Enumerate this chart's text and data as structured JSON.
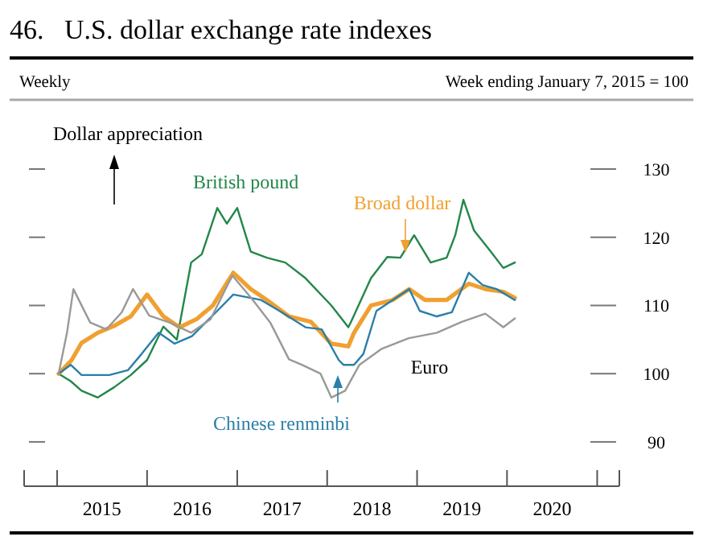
{
  "chart_data": {
    "type": "line",
    "title": "46.   U.S. dollar exchange rate indexes",
    "subtitle": "Weekly",
    "ylabel": "Week ending January 7, 2015 = 100",
    "annotations": [
      "Dollar appreciation"
    ],
    "xlim": [
      "2014-08-20",
      "2021-04-01"
    ],
    "xticks": [
      {
        "value": "2015-01-01",
        "label": null
      },
      {
        "value": "2015-07-02",
        "label": "2015"
      },
      {
        "value": "2016-01-01",
        "label": null
      },
      {
        "value": "2016-07-02",
        "label": "2016"
      },
      {
        "value": "2017-01-01",
        "label": null
      },
      {
        "value": "2017-07-02",
        "label": "2017"
      },
      {
        "value": "2018-01-01",
        "label": null
      },
      {
        "value": "2018-07-02",
        "label": "2018"
      },
      {
        "value": "2019-01-01",
        "label": null
      },
      {
        "value": "2019-07-02",
        "label": "2019"
      },
      {
        "value": "2020-01-01",
        "label": null
      },
      {
        "value": "2020-07-02",
        "label": "2020"
      },
      {
        "value": "2021-01-01",
        "label": null
      }
    ],
    "ylim": [
      83.5,
      130
    ],
    "yticks": [
      90,
      100,
      110,
      120,
      130
    ],
    "tick_labels": "x_and_right",
    "series": [
      {
        "name": "British pound",
        "color": "#23874a",
        "x": [
          "2015-01-07",
          "2015-02-25",
          "2015-04-10",
          "2015-06-15",
          "2015-08-20",
          "2015-10-27",
          "2016-01-01",
          "2016-03-07",
          "2016-05-01",
          "2016-06-28",
          "2016-08-10",
          "2016-10-12",
          "2016-11-20",
          "2017-01-01",
          "2017-02-25",
          "2017-05-01",
          "2017-07-15",
          "2017-10-05",
          "2018-01-18",
          "2018-03-28",
          "2018-04-08",
          "2018-06-28",
          "2018-09-02",
          "2018-10-25",
          "2018-12-20",
          "2019-02-25",
          "2019-05-01",
          "2019-06-05",
          "2019-07-08",
          "2019-08-20",
          "2019-10-27",
          "2019-12-17",
          "2020-02-02"
        ],
        "values": [
          100,
          98.9,
          97.5,
          96.5,
          98,
          99.8,
          102,
          106.9,
          105,
          116.3,
          117.5,
          124.3,
          122,
          124.3,
          117.9,
          117,
          116.3,
          114,
          110,
          106.8,
          107.6,
          114,
          117.1,
          117,
          120.3,
          116.3,
          117,
          120.3,
          125.5,
          121,
          117.9,
          115.5,
          116.3
        ]
      },
      {
        "name": "Broad dollar",
        "color": "#f0a030",
        "x": [
          "2015-01-07",
          "2015-03-01",
          "2015-04-10",
          "2015-06-15",
          "2015-08-20",
          "2015-10-27",
          "2016-01-01",
          "2016-03-07",
          "2016-05-12",
          "2016-07-20",
          "2016-09-24",
          "2016-12-16",
          "2017-02-25",
          "2017-05-01",
          "2017-07-30",
          "2017-10-27",
          "2018-01-18",
          "2018-03-28",
          "2018-04-20",
          "2018-06-28",
          "2018-09-24",
          "2018-11-30",
          "2019-02-02",
          "2019-05-01",
          "2019-07-30",
          "2019-10-05",
          "2019-12-17",
          "2020-02-02"
        ],
        "values": [
          100,
          102,
          104.5,
          106,
          107,
          108.4,
          111.6,
          108.4,
          106.8,
          108,
          110,
          114.8,
          112.4,
          110.8,
          108.4,
          107.6,
          104.4,
          104,
          106,
          110,
          110.8,
          112.4,
          110.8,
          110.8,
          113.2,
          112.4,
          112,
          111.1
        ]
      },
      {
        "name": "Chinese renminbi",
        "color": "#2a7fa8",
        "x": [
          "2015-01-07",
          "2015-02-25",
          "2015-04-10",
          "2015-08-01",
          "2015-10-15",
          "2015-12-10",
          "2016-02-17",
          "2016-04-22",
          "2016-07-01",
          "2016-10-12",
          "2016-12-16",
          "2017-04-08",
          "2017-07-01",
          "2017-10-05",
          "2017-12-10",
          "2018-02-17",
          "2018-03-08",
          "2018-04-20",
          "2018-05-28",
          "2018-07-20",
          "2018-09-24",
          "2018-11-30",
          "2019-01-12",
          "2019-03-22",
          "2019-05-22",
          "2019-07-30",
          "2019-09-24",
          "2019-11-20",
          "2020-02-02"
        ],
        "values": [
          100,
          101.3,
          99.8,
          99.8,
          100.5,
          102.9,
          106,
          104.4,
          105.5,
          109.2,
          111.6,
          110.8,
          109,
          106.8,
          106.5,
          102,
          101.3,
          101.3,
          102.9,
          109.2,
          110.8,
          112.4,
          109.2,
          108.4,
          109,
          114.8,
          113,
          112.4,
          110.8
        ]
      },
      {
        "name": "Euro",
        "color": "#999999",
        "x": [
          "2015-01-07",
          "2015-02-10",
          "2015-03-08",
          "2015-05-15",
          "2015-07-20",
          "2015-09-20",
          "2015-11-05",
          "2016-01-10",
          "2016-04-01",
          "2016-06-28",
          "2016-09-15",
          "2016-12-12",
          "2017-03-01",
          "2017-05-15",
          "2017-07-30",
          "2017-09-20",
          "2017-12-05",
          "2018-01-18",
          "2018-03-15",
          "2018-05-12",
          "2018-08-08",
          "2018-11-28",
          "2019-03-22",
          "2019-07-01",
          "2019-10-05",
          "2019-12-17",
          "2020-02-02"
        ],
        "values": [
          100,
          106,
          112.4,
          107.5,
          106.5,
          109,
          112.4,
          108.5,
          107.5,
          106,
          108,
          114.4,
          111,
          107.5,
          102.1,
          101.3,
          100,
          96.5,
          97.5,
          101.3,
          103.6,
          105.2,
          106,
          107.6,
          108.8,
          106.8,
          108.1
        ]
      }
    ],
    "grid": false,
    "marker": "none",
    "line_style": "solid"
  }
}
